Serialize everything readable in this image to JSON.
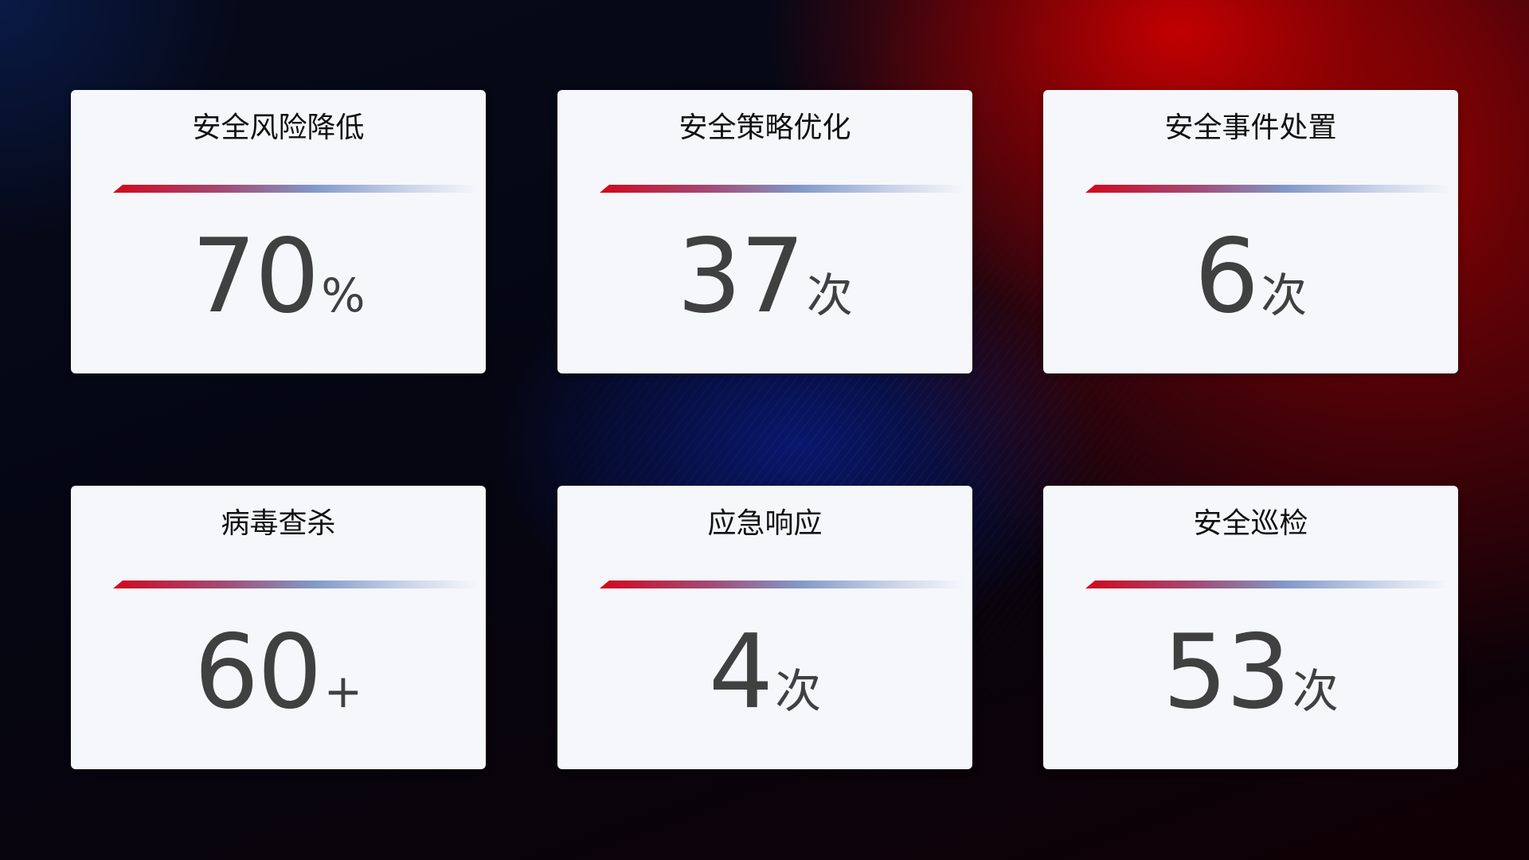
{
  "cards": [
    {
      "title": "安全风险降低",
      "value": "70",
      "unit": "%"
    },
    {
      "title": "安全策略优化",
      "value": "37",
      "unit": "次"
    },
    {
      "title": "安全事件处置",
      "value": "6",
      "unit": "次"
    },
    {
      "title": "病毒查杀",
      "value": "60",
      "unit": "+"
    },
    {
      "title": "应急响应",
      "value": "4",
      "unit": "次"
    },
    {
      "title": "安全巡检",
      "value": "53",
      "unit": "次"
    }
  ],
  "colors": {
    "accent_red": "#d0081e",
    "accent_blue": "#8299c8",
    "card_bg": "#f6f7fb",
    "value_text": "#404040"
  }
}
